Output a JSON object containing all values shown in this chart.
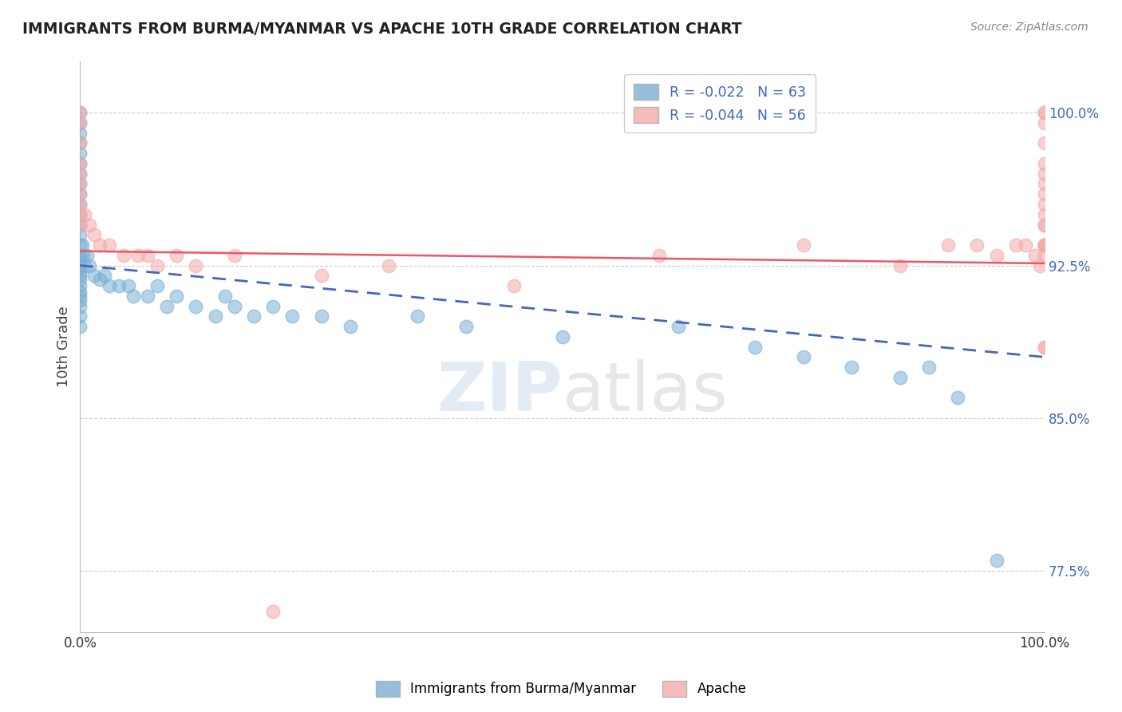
{
  "title": "IMMIGRANTS FROM BURMA/MYANMAR VS APACHE 10TH GRADE CORRELATION CHART",
  "source_text": "Source: ZipAtlas.com",
  "ylabel": "10th Grade",
  "watermark_zip": "ZIP",
  "watermark_atlas": "atlas",
  "xlim": [
    0.0,
    100.0
  ],
  "ylim": [
    74.5,
    102.5
  ],
  "yticks": [
    77.5,
    85.0,
    92.5,
    100.0
  ],
  "ytick_labels": [
    "77.5%",
    "85.0%",
    "92.5%",
    "100.0%"
  ],
  "xticks": [
    0.0,
    100.0
  ],
  "xtick_labels": [
    "0.0%",
    "100.0%"
  ],
  "legend_r1": "R = -0.022",
  "legend_n1": "N = 63",
  "legend_r2": "R = -0.044",
  "legend_n2": "N = 56",
  "blue_color": "#7BAFD4",
  "pink_color": "#F4AAAA",
  "blue_line_color": "#4466BB",
  "red_line_color": "#EE5566",
  "background_color": "#FFFFFF",
  "title_color": "#222222",
  "tick_color": "#4466BB",
  "legend_text_color": "#4466BB",
  "blue_trend": [
    0.0,
    100.0,
    92.5,
    88.0
  ],
  "red_trend": [
    0.0,
    100.0,
    93.2,
    92.6
  ],
  "blue_scatter_x": [
    0.0,
    0.0,
    0.0,
    0.0,
    0.0,
    0.0,
    0.0,
    0.0,
    0.0,
    0.0,
    0.0,
    0.0,
    0.0,
    0.0,
    0.0,
    0.0,
    0.0,
    0.0,
    0.0,
    0.0,
    0.0,
    0.0,
    0.0,
    0.0,
    0.0,
    0.0,
    0.0,
    0.2,
    0.3,
    0.5,
    0.7,
    1.0,
    1.5,
    2.0,
    2.5,
    3.0,
    4.0,
    5.0,
    5.5,
    7.0,
    8.0,
    9.0,
    10.0,
    12.0,
    14.0,
    15.0,
    16.0,
    18.0,
    20.0,
    22.0,
    25.0,
    28.0,
    35.0,
    40.0,
    50.0,
    62.0,
    70.0,
    75.0,
    80.0,
    85.0,
    88.0,
    91.0,
    95.0
  ],
  "blue_scatter_y": [
    100.0,
    99.5,
    99.0,
    98.5,
    98.0,
    97.5,
    97.0,
    96.5,
    96.0,
    95.5,
    95.0,
    94.5,
    94.0,
    93.5,
    93.0,
    92.8,
    92.5,
    92.2,
    92.0,
    91.8,
    91.5,
    91.2,
    91.0,
    90.8,
    90.5,
    90.0,
    89.5,
    93.5,
    93.0,
    92.5,
    93.0,
    92.5,
    92.0,
    91.8,
    92.0,
    91.5,
    91.5,
    91.5,
    91.0,
    91.0,
    91.5,
    90.5,
    91.0,
    90.5,
    90.0,
    91.0,
    90.5,
    90.0,
    90.5,
    90.0,
    90.0,
    89.5,
    90.0,
    89.5,
    89.0,
    89.5,
    88.5,
    88.0,
    87.5,
    87.0,
    87.5,
    86.0,
    78.0
  ],
  "pink_scatter_x": [
    0.0,
    0.0,
    0.0,
    0.0,
    0.0,
    0.0,
    0.0,
    0.0,
    0.0,
    0.0,
    0.5,
    1.0,
    1.5,
    2.0,
    3.0,
    4.5,
    6.0,
    7.0,
    8.0,
    10.0,
    12.0,
    16.0,
    20.0,
    25.0,
    32.0,
    45.0,
    60.0,
    75.0,
    85.0,
    90.0,
    93.0,
    95.0,
    97.0,
    98.0,
    99.0,
    99.5,
    100.0,
    100.0,
    100.0,
    100.0,
    100.0,
    100.0,
    100.0,
    100.0,
    100.0,
    100.0,
    100.0,
    100.0,
    100.0,
    100.0,
    100.0,
    100.0,
    100.0,
    100.0,
    100.0,
    100.0
  ],
  "pink_scatter_y": [
    100.0,
    99.5,
    98.5,
    97.5,
    97.0,
    96.5,
    96.0,
    95.5,
    95.0,
    94.5,
    95.0,
    94.5,
    94.0,
    93.5,
    93.5,
    93.0,
    93.0,
    93.0,
    92.5,
    93.0,
    92.5,
    93.0,
    75.5,
    92.0,
    92.5,
    91.5,
    93.0,
    93.5,
    92.5,
    93.5,
    93.5,
    93.0,
    93.5,
    93.5,
    93.0,
    92.5,
    100.0,
    100.0,
    99.5,
    98.5,
    97.5,
    97.0,
    96.5,
    96.0,
    95.5,
    95.0,
    94.5,
    94.5,
    93.5,
    93.5,
    93.5,
    93.5,
    93.0,
    93.5,
    88.5,
    88.5
  ]
}
